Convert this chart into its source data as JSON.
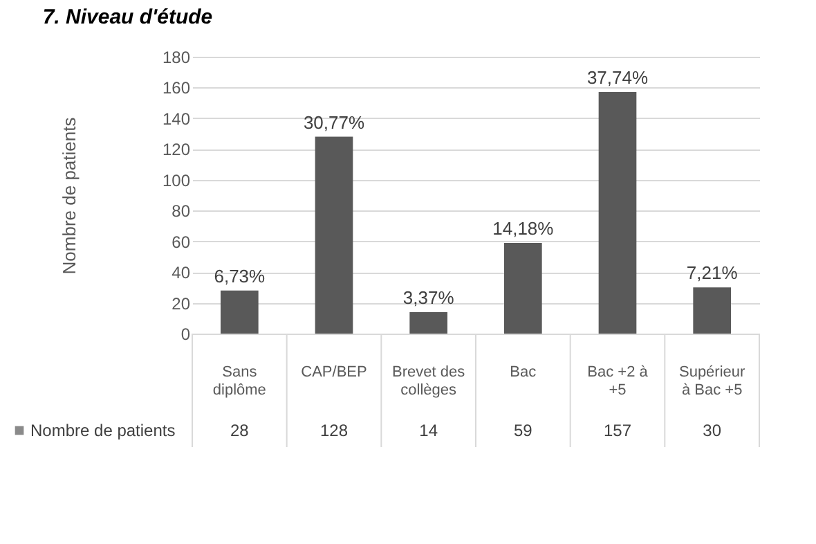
{
  "chart_data": {
    "type": "bar",
    "title": "7.      Niveau d'étude",
    "ylabel": "Nombre de patients",
    "categories": [
      "Sans diplôme",
      "CAP/BEP",
      "Brevet des collèges",
      "Bac",
      "Bac +2 à +5",
      "Supérieur à Bac +5"
    ],
    "series": [
      {
        "name": "Nombre de patients",
        "color": "#595959",
        "values": [
          28,
          128,
          14,
          59,
          157,
          30
        ]
      }
    ],
    "annotations": [
      {
        "text": "6,73%",
        "x": "Sans diplôme",
        "y": 28
      },
      {
        "text": "30,77%",
        "x": "CAP/BEP",
        "y": 128
      },
      {
        "text": "3,37%",
        "x": "Brevet des collèges",
        "y": 14
      },
      {
        "text": "14,18%",
        "x": "Bac",
        "y": 59
      },
      {
        "text": "37,74%",
        "x": "Bac +2 à +5",
        "y": 157
      },
      {
        "text": "7,21%",
        "x": "Supérieur à Bac +5",
        "y": 30
      }
    ],
    "ylim": [
      0,
      180
    ],
    "yticks": [
      0,
      20,
      40,
      60,
      80,
      100,
      120,
      140,
      160,
      180
    ],
    "grid": "y",
    "data_labels": true,
    "legend": "bottom left"
  }
}
